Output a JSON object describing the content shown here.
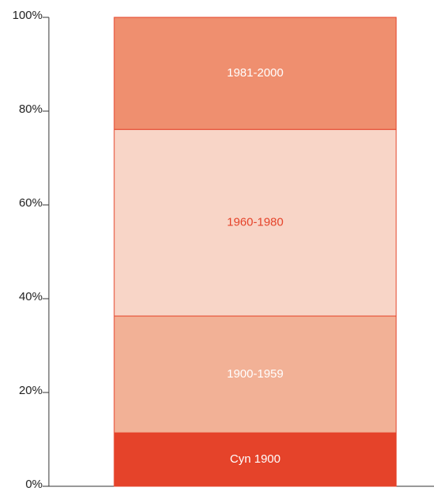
{
  "chart_data": {
    "type": "stacked_bar",
    "categories": [
      null
    ],
    "series": [
      {
        "name": "Cyn 1900",
        "color": "#e5432a",
        "label_color": "#ffffff",
        "values": [
          11.4
        ]
      },
      {
        "name": "1900-1959",
        "color": "#f2b196",
        "label_color": "#ffffff",
        "values": [
          24.9
        ]
      },
      {
        "name": "1960-1980",
        "color": "#f8d5c7",
        "label_color": "#e5432a",
        "values": [
          39.8
        ]
      },
      {
        "name": "1981-2000",
        "color": "#ef8f6f",
        "label_color": "#ffffff",
        "values": [
          23.9
        ]
      }
    ],
    "ylim": [
      0,
      100
    ],
    "yticks": [
      {
        "value": 0,
        "label": "0%"
      },
      {
        "value": 20,
        "label": "20%"
      },
      {
        "value": 40,
        "label": "40%"
      },
      {
        "value": 60,
        "label": "60%"
      },
      {
        "value": 80,
        "label": "80%"
      },
      {
        "value": 100,
        "label": "100%"
      }
    ]
  }
}
